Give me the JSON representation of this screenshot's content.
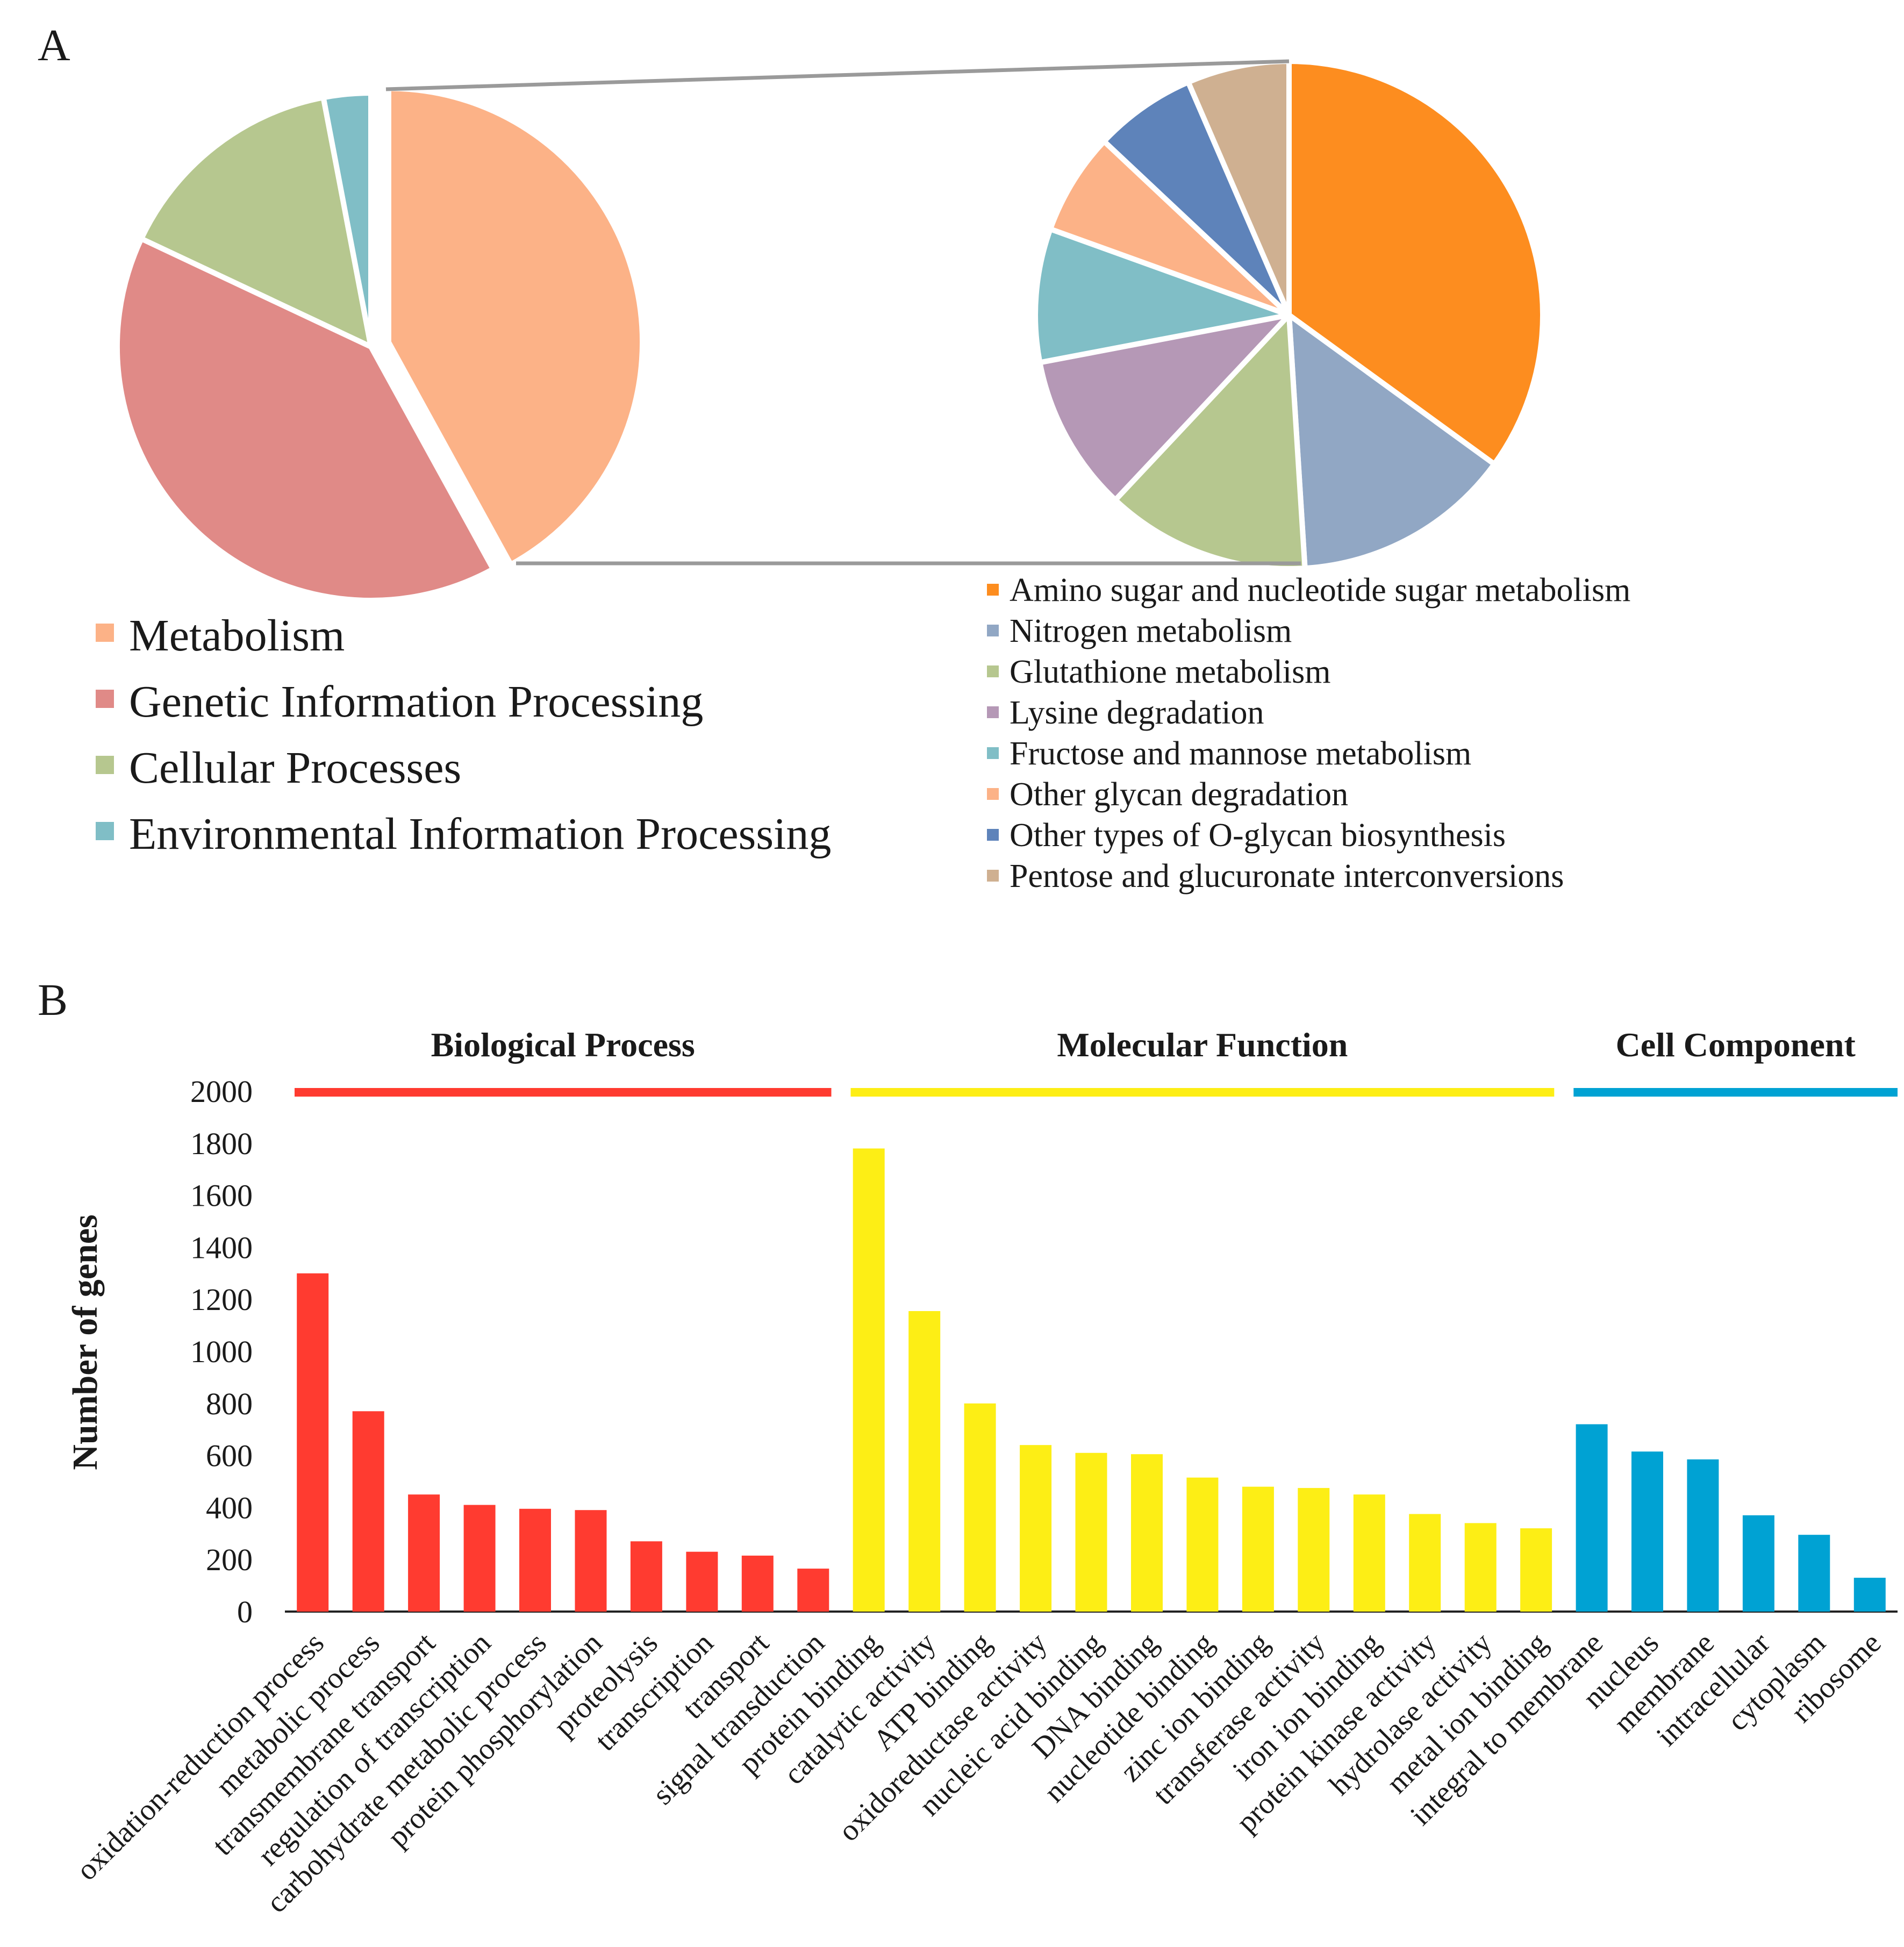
{
  "panel_labels": {
    "a": "A",
    "b": "B"
  },
  "colors": {
    "metabolism": "#FCB287",
    "genetic": "#E08A87",
    "cellular": "#B6C78F",
    "environmental": "#80BEC6",
    "amino": "#FD8D1F",
    "nitrogen": "#91A7C4",
    "glutathione": "#B6C78F",
    "lysine": "#B598B6",
    "fructose": "#80BEC6",
    "other_glycan": "#FCB287",
    "o_glycan": "#5E83BA",
    "pentose": "#CFB091",
    "bp_bar": "#FF3B30",
    "mf_bar": "#FDEE15",
    "cc_bar": "#00A2D3",
    "connector": "#9a9a9a"
  },
  "chart_data": [
    {
      "type": "pie",
      "title": "",
      "labels": [
        "Metabolism",
        "Genetic Information Processing",
        "Cellular Processes",
        "Environmental Information Processing"
      ],
      "values": [
        42,
        40,
        15,
        3
      ],
      "exploded": "Metabolism",
      "legend": "bottom-left"
    },
    {
      "type": "pie",
      "title": "",
      "labels": [
        "Amino sugar and nucleotide sugar metabolism",
        "Nitrogen metabolism",
        "Glutathione metabolism",
        "Lysine degradation",
        "Fructose and mannose metabolism",
        "Other glycan degradation",
        "Other types of O-glycan biosynthesis",
        "Pentose and glucuronate interconversions"
      ],
      "values": [
        35,
        14,
        13,
        10,
        8.5,
        6.5,
        6.5,
        6.5
      ],
      "legend": "bottom-right"
    },
    {
      "type": "bar",
      "title": "",
      "xlabel": "",
      "ylabel": "Number of genes",
      "ylim": [
        0,
        2000
      ],
      "yticks": [
        0,
        200,
        400,
        600,
        800,
        1000,
        1200,
        1400,
        1600,
        1800,
        2000
      ],
      "groups": [
        {
          "name": "Biological Process",
          "color_key": "bp_bar",
          "categories": [
            "oxidation-reduction process",
            "metabolic process",
            "transmembrane transport",
            "regulation of transcription",
            "carbohydrate metabolic process",
            "protein phosphorylation",
            "proteolysis",
            "transcription",
            "transport",
            "signal transduction"
          ],
          "values": [
            1300,
            770,
            450,
            410,
            395,
            390,
            270,
            230,
            215,
            165
          ]
        },
        {
          "name": "Molecular Function",
          "color_key": "mf_bar",
          "categories": [
            "protein binding",
            "catalytic activity",
            "ATP binding",
            "oxidoreductase activity",
            "nucleic acid binding",
            "DNA binding",
            "nucleotide binding",
            "zinc ion binding",
            "transferase activity",
            "iron ion binding",
            "protein kinase activity",
            "hydrolase activity",
            "metal ion binding"
          ],
          "values": [
            1780,
            1155,
            800,
            640,
            610,
            605,
            515,
            480,
            475,
            450,
            375,
            340,
            320
          ]
        },
        {
          "name": "Cell Component",
          "color_key": "cc_bar",
          "categories": [
            "integral to membrane",
            "nucleus",
            "membrane",
            "intracellular",
            "cytoplasm",
            "ribosome"
          ],
          "values": [
            720,
            615,
            585,
            370,
            295,
            130
          ]
        }
      ]
    }
  ]
}
